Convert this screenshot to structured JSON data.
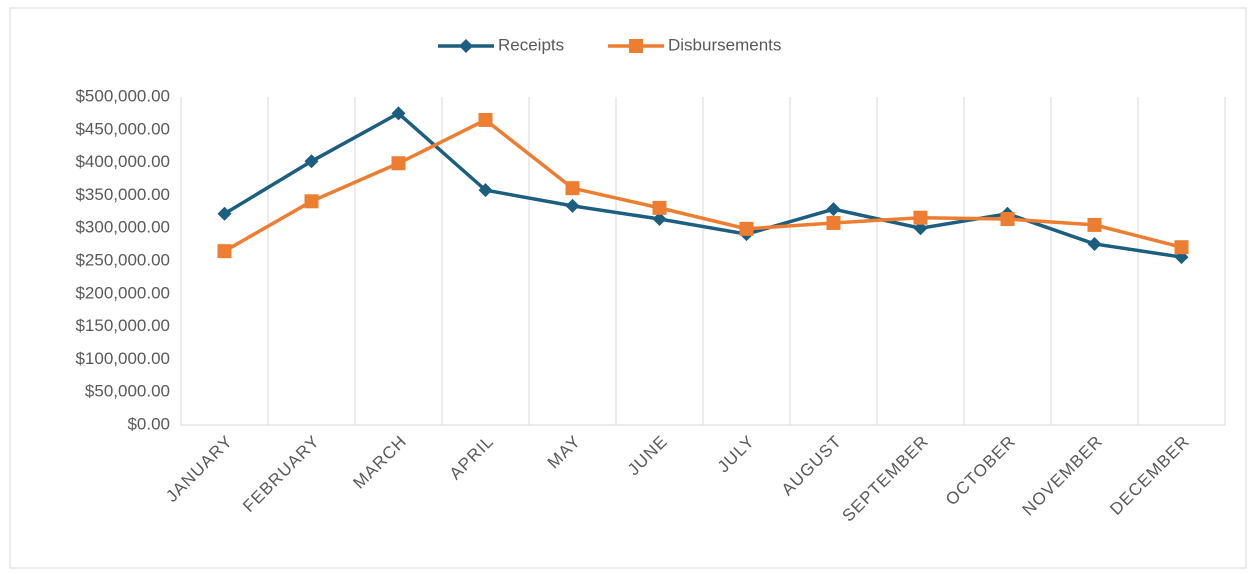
{
  "chart_data": {
    "type": "line",
    "categories": [
      "JANUARY",
      "FEBRUARY",
      "MARCH",
      "APRIL",
      "MAY",
      "JUNE",
      "JULY",
      "AUGUST",
      "SEPTEMBER",
      "OCTOBER",
      "NOVEMBER",
      "DECEMBER"
    ],
    "series": [
      {
        "name": "Receipts",
        "color": "#1b5e80",
        "marker": "diamond",
        "values": [
          322000,
          402000,
          475000,
          358000,
          334000,
          314000,
          291000,
          329000,
          300000,
          322000,
          276000,
          256000
        ]
      },
      {
        "name": "Disbursements",
        "color": "#ed7d31",
        "marker": "square",
        "values": [
          265000,
          341000,
          399000,
          465000,
          361000,
          331000,
          299000,
          308000,
          316000,
          314000,
          305000,
          271000
        ]
      }
    ],
    "ylim": [
      0,
      500000
    ],
    "yticks": [
      {
        "value": 0,
        "label": "$0.00"
      },
      {
        "value": 50000,
        "label": "$50,000.00"
      },
      {
        "value": 100000,
        "label": "$100,000.00"
      },
      {
        "value": 150000,
        "label": "$150,000.00"
      },
      {
        "value": 200000,
        "label": "$200,000.00"
      },
      {
        "value": 250000,
        "label": "$250,000.00"
      },
      {
        "value": 300000,
        "label": "$300,000.00"
      },
      {
        "value": 350000,
        "label": "$350,000.00"
      },
      {
        "value": 400000,
        "label": "$400,000.00"
      },
      {
        "value": 450000,
        "label": "$450,000.00"
      },
      {
        "value": 500000,
        "label": "$500,000.00"
      }
    ],
    "grid": "vertical",
    "legend": "top"
  }
}
